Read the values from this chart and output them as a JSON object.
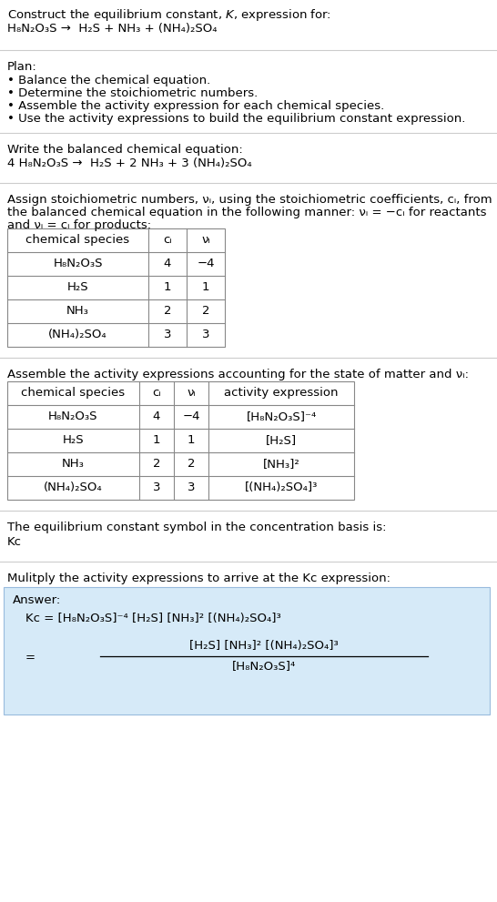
{
  "bg_color": "#ffffff",
  "text_color": "#000000",
  "light_blue_bg": "#cce5ff",
  "border_color": "#aaaaaa",
  "title_line1": "Construct the equilibrium constant, $K$, expression for:",
  "title_line2_plain": "H₈N₂O₃S →  H₂S + NH₃ + (NH₄)₂SO₄",
  "plan_header": "Plan:",
  "balanced_header": "Write the balanced chemical equation:",
  "balanced_eq_plain": "4 H₈N₂O₃S →  H₂S + 2 NH₃ + 3 (NH₄)₂SO₄",
  "stoich_text_line1": "Assign stoichiometric numbers, νᵢ, using the stoichiometric coefficients, cᵢ, from",
  "stoich_text_line2": "the balanced chemical equation in the following manner: νᵢ = −cᵢ for reactants",
  "stoich_text_line3": "and νᵢ = cᵢ for products:",
  "table1_header": [
    "chemical species",
    "cᵢ",
    "νᵢ"
  ],
  "table1_rows": [
    [
      "H₈N₂O₃S",
      "4",
      "−4"
    ],
    [
      "H₂S",
      "1",
      "1"
    ],
    [
      "NH₃",
      "2",
      "2"
    ],
    [
      "(NH₄)₂SO₄",
      "3",
      "3"
    ]
  ],
  "activity_header": "Assemble the activity expressions accounting for the state of matter and νᵢ:",
  "table2_header": [
    "chemical species",
    "cᵢ",
    "νᵢ",
    "activity expression"
  ],
  "table2_rows": [
    [
      "H₈N₂O₃S",
      "4",
      "−4",
      "[H₈N₂O₃S]⁻⁴"
    ],
    [
      "H₂S",
      "1",
      "1",
      "[H₂S]"
    ],
    [
      "NH₃",
      "2",
      "2",
      "[NH₃]²"
    ],
    [
      "(NH₄)₂SO₄",
      "3",
      "3",
      "[(NH₄)₂SO₄]³"
    ]
  ],
  "kc_text": "The equilibrium constant symbol in the concentration basis is:",
  "kc_symbol": "Kᴄ",
  "multiply_text": "Mulitply the activity expressions to arrive at the Kᴄ expression:",
  "answer_label": "Answer:",
  "ans_line1a": "Kᴄ = [H₈N₂O₃S]⁻⁴ [H₂S] [NH₃]² [(NH₄)₂SO₄]³",
  "ans_numerator": "[H₂S] [NH₃]² [(NH₄)₂SO₄]³",
  "ans_denominator": "[H₈N₂O₃S]⁴",
  "divider_color": "#cccccc"
}
